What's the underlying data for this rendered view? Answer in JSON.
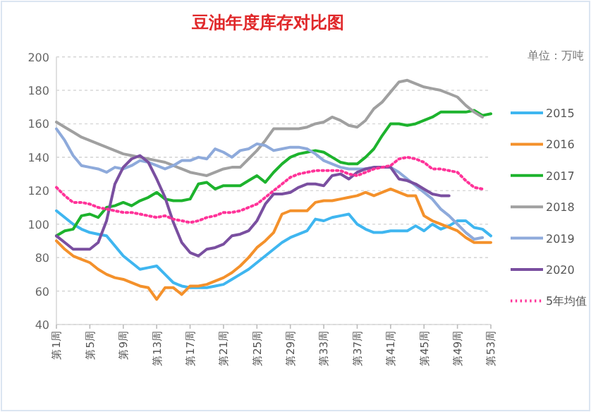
{
  "chart_data": {
    "type": "line",
    "title": "豆油年度库存对比图",
    "annotations": [
      "单位：万吨"
    ],
    "categories": [
      "第1周",
      null,
      null,
      null,
      "第5周",
      null,
      null,
      null,
      "第9周",
      null,
      null,
      null,
      "第13周",
      null,
      null,
      null,
      "第17周",
      null,
      null,
      null,
      "第21周",
      null,
      null,
      null,
      "第25周",
      null,
      null,
      null,
      "第29周",
      null,
      null,
      null,
      "第33周",
      null,
      null,
      null,
      "第37周",
      null,
      null,
      null,
      "第41周",
      null,
      null,
      null,
      "第45周",
      null,
      null,
      null,
      "第49周",
      null,
      null,
      null,
      "第53周"
    ],
    "ylim": [
      40,
      200
    ],
    "yticks": [
      40,
      60,
      80,
      100,
      120,
      140,
      160,
      180,
      200
    ],
    "grid": "y",
    "legend": "right",
    "marker": "none",
    "line_style": "solid",
    "series": [
      {
        "name": "2015",
        "color": "#3fb6f0",
        "values": [
          108,
          104,
          100,
          97,
          95,
          94,
          93,
          87,
          81,
          77,
          73,
          74,
          75,
          70,
          65,
          63,
          62,
          62,
          62,
          63,
          64,
          67,
          70,
          73,
          77,
          81,
          85,
          89,
          92,
          94,
          96,
          103,
          102,
          104,
          105,
          106,
          100,
          97,
          95,
          95,
          96,
          96,
          96,
          99,
          96,
          100,
          97,
          99,
          102,
          102,
          98,
          97,
          93
        ]
      },
      {
        "name": "2016",
        "color": "#f4912b",
        "values": [
          90,
          85,
          81,
          79,
          77,
          73,
          70,
          68,
          67,
          65,
          63,
          62,
          55,
          62,
          62,
          58,
          63,
          63,
          64,
          66,
          68,
          71,
          75,
          80,
          86,
          90,
          95,
          106,
          108,
          108,
          108,
          113,
          114,
          114,
          115,
          116,
          117,
          119,
          117,
          119,
          121,
          119,
          117,
          117,
          105,
          102,
          100,
          98,
          96,
          92,
          89,
          89,
          89
        ]
      },
      {
        "name": "2017",
        "color": "#1db32d",
        "values": [
          93,
          96,
          97,
          105,
          106,
          104,
          110,
          111,
          113,
          111,
          114,
          116,
          119,
          115,
          114,
          114,
          115,
          124,
          125,
          121,
          123,
          123,
          123,
          126,
          129,
          125,
          131,
          136,
          140,
          142,
          143,
          144,
          143,
          140,
          137,
          136,
          136,
          140,
          145,
          153,
          160,
          160,
          159,
          160,
          162,
          164,
          167,
          167,
          167,
          167,
          168,
          165,
          166
        ]
      },
      {
        "name": "2018",
        "color": "#a0a0a0",
        "values": [
          161,
          158,
          155,
          152,
          150,
          148,
          146,
          144,
          142,
          141,
          140,
          139,
          138,
          137,
          135,
          133,
          131,
          130,
          129,
          131,
          133,
          134,
          134,
          139,
          144,
          150,
          157,
          157,
          157,
          157,
          158,
          160,
          161,
          164,
          162,
          159,
          158,
          162,
          169,
          173,
          179,
          185,
          186,
          184,
          182,
          181,
          180,
          178,
          176,
          171,
          167,
          164,
          null
        ]
      },
      {
        "name": "2019",
        "color": "#8eaadb",
        "values": [
          157,
          150,
          141,
          135,
          134,
          133,
          131,
          134,
          133,
          135,
          138,
          137,
          135,
          133,
          135,
          138,
          138,
          140,
          139,
          145,
          143,
          140,
          144,
          145,
          148,
          147,
          144,
          145,
          146,
          146,
          145,
          142,
          138,
          136,
          134,
          133,
          133,
          133,
          134,
          134,
          134,
          131,
          127,
          123,
          119,
          115,
          109,
          105,
          100,
          95,
          91,
          92,
          null
        ]
      },
      {
        "name": "2020",
        "color": "#7a4fa0",
        "values": [
          93,
          89,
          85,
          85,
          85,
          89,
          102,
          124,
          134,
          139,
          141,
          137,
          127,
          116,
          101,
          89,
          83,
          81,
          85,
          86,
          88,
          93,
          94,
          96,
          102,
          112,
          118,
          118,
          119,
          122,
          124,
          124,
          123,
          129,
          130,
          127,
          131,
          133,
          134,
          134,
          134,
          127,
          126,
          124,
          121,
          118,
          117,
          117,
          null,
          null,
          null,
          null,
          null
        ]
      },
      {
        "name": "5年均值",
        "color": "#ff3399",
        "line_style": "dotted",
        "values": [
          122,
          117,
          113,
          113,
          112,
          110,
          109,
          108,
          107,
          107,
          106,
          105,
          104,
          105,
          103,
          102,
          101,
          102,
          104,
          105,
          107,
          107,
          108,
          110,
          112,
          116,
          120,
          124,
          128,
          130,
          131,
          132,
          132,
          132,
          132,
          130,
          129,
          131,
          133,
          134,
          135,
          139,
          140,
          139,
          137,
          133,
          133,
          132,
          131,
          126,
          122,
          121,
          null
        ]
      }
    ]
  }
}
